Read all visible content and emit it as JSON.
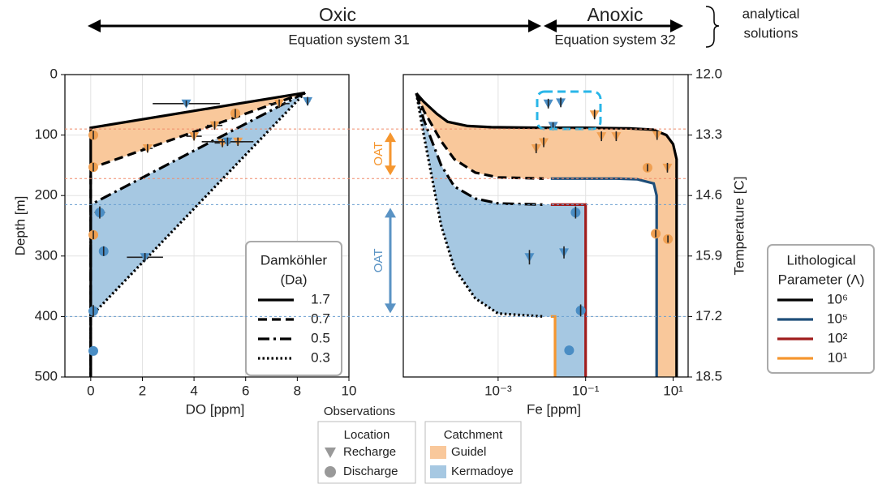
{
  "header": {
    "oxic": "Oxic",
    "anoxic": "Anoxic",
    "eq_oxic": "Equation system 31",
    "eq_anoxic": "Equation system 32",
    "analytical_1": "analytical",
    "analytical_2": "solutions"
  },
  "chart_data": [
    {
      "type": "line",
      "xlabel": "DO [ppm]",
      "ylabel": "Depth [m]",
      "xlim": [
        -1,
        10
      ],
      "xticks": [
        0,
        2,
        4,
        6,
        8,
        10
      ],
      "ylim": [
        0,
        500
      ],
      "y_inverted": true,
      "yticks": [
        0,
        100,
        200,
        300,
        400,
        500
      ],
      "grid": true,
      "legend_title": [
        "Damköhler",
        "(Da)"
      ],
      "series": [
        {
          "name": "1.7",
          "color": "#000000",
          "dash": "solid",
          "x": [
            8.3,
            0,
            0
          ],
          "y": [
            30,
            88,
            500
          ]
        },
        {
          "name": "0.7",
          "color": "#000000",
          "dash": "dashed",
          "x": [
            8.3,
            0,
            0
          ],
          "y": [
            30,
            155,
            500
          ]
        },
        {
          "name": "0.5",
          "color": "#000000",
          "dash": "dashdot",
          "x": [
            8.3,
            0,
            0
          ],
          "y": [
            30,
            215,
            500
          ]
        },
        {
          "name": "0.3",
          "color": "#000000",
          "dash": "dotted",
          "x": [
            8.3,
            0,
            0
          ],
          "y": [
            30,
            400,
            500
          ]
        }
      ],
      "fills": [
        {
          "color": "#f9c89b",
          "path": [
            {
              "series": 0,
              "reverse": false
            },
            {
              "series": 1,
              "reverse": true
            }
          ]
        },
        {
          "color": "#a6c8e2",
          "path": [
            {
              "series": 2,
              "reverse": false
            },
            {
              "series": 3,
              "reverse": true
            }
          ]
        }
      ],
      "observations": [
        {
          "marker": "triangle",
          "color": "#f0a052",
          "x": [
            2.2,
            4.0,
            4.8,
            7.3,
            5.1,
            5.7
          ],
          "y": [
            122,
            102,
            84,
            48,
            113,
            111
          ],
          "xerr": [
            0.2,
            0.3,
            0.3,
            0.4,
            0.3,
            0.2
          ],
          "yerr": [
            7,
            7,
            7,
            7,
            7,
            7
          ]
        },
        {
          "marker": "circle",
          "color": "#f0a052",
          "x": [
            0.1,
            0.1,
            0.1,
            5.6
          ],
          "y": [
            100,
            153,
            265,
            64
          ],
          "xerr": [
            0.1,
            0.1,
            0.1,
            0.1
          ],
          "yerr": [
            7,
            7,
            7,
            7
          ]
        },
        {
          "marker": "triangle",
          "color": "#4a8dc4",
          "x": [
            3.7,
            8.4,
            2.1,
            5.3
          ],
          "y": [
            48,
            44,
            302,
            111
          ],
          "xerr": [
            1.3,
            0.1,
            0.7,
            1.0
          ],
          "yerr": [
            5,
            7,
            7,
            7
          ]
        },
        {
          "marker": "circle",
          "color": "#4a8dc4",
          "x": [
            0.35,
            0.5,
            0.1,
            0.1
          ],
          "y": [
            228,
            292,
            391,
            457
          ],
          "xerr": [
            0.2,
            0.15,
            0.1,
            0
          ],
          "yerr": [
            10,
            8,
            10,
            0
          ]
        }
      ]
    },
    {
      "type": "line",
      "xlabel": "Fe [ppm]",
      "y2label": "Temperature [C]",
      "xlim": [
        6.8e-06,
        22
      ],
      "xlog": true,
      "xticks": [
        {
          "value": 0.001,
          "label": "10⁻³"
        },
        {
          "value": 0.1,
          "label": "10⁻¹"
        },
        {
          "value": 10,
          "label": "10¹"
        }
      ],
      "ylim": [
        0,
        500
      ],
      "y_inverted": true,
      "y2lim": [
        12,
        18.5
      ],
      "y2_inverted": true,
      "y2ticks": [
        {
          "value": 12,
          "label": "12.0"
        },
        13.3,
        14.6,
        15.9,
        17.2,
        18.5
      ],
      "grid": true,
      "legend_title": [
        "Lithological",
        "Parameter (Λ)"
      ],
      "series": [
        {
          "name": "10⁶",
          "color": "#000000",
          "dash": "solid",
          "x": [
            1.35e-05,
            2e-05,
            4e-05,
            7e-05,
            0.0002,
            0.0007,
            0.01,
            0.1,
            1,
            3.5,
            7,
            10,
            12,
            12
          ],
          "y": [
            31,
            45,
            65,
            78,
            85,
            87,
            88,
            88,
            89,
            91,
            100,
            115,
            140,
            500
          ]
        },
        {
          "color": "#000000",
          "dash": "dashed",
          "x": [
            1.35e-05,
            2e-05,
            5e-05,
            0.0001,
            0.0003,
            0.001,
            0.011
          ],
          "y": [
            31,
            60,
            110,
            140,
            162,
            170,
            172
          ]
        },
        {
          "color": "#000000",
          "dash": "dashdot",
          "x": [
            1.35e-05,
            2e-05,
            5e-05,
            0.0001,
            0.0003,
            0.001,
            0.011
          ],
          "y": [
            31,
            75,
            150,
            185,
            205,
            213,
            215
          ]
        },
        {
          "color": "#000000",
          "dash": "dotted",
          "x": [
            1.35e-05,
            2e-05,
            5e-05,
            0.0001,
            0.0003,
            0.001,
            0.011
          ],
          "y": [
            31,
            100,
            250,
            320,
            370,
            395,
            400
          ]
        },
        {
          "name": "10⁵",
          "color": "#1f4e79",
          "dash": "solid",
          "x": [
            0.016,
            0.1,
            0.5,
            1.5,
            3.6,
            4.2,
            4.2
          ],
          "y": [
            172,
            172,
            172,
            173,
            180,
            200,
            500
          ]
        },
        {
          "name": "10²",
          "color": "#a01c1c",
          "dash": "solid",
          "x": [
            0.016,
            0.1,
            0.1
          ],
          "y": [
            215,
            215,
            500
          ]
        },
        {
          "name": "10¹",
          "color": "#f5962f",
          "dash": "solid",
          "x": [
            0.016,
            0.02,
            0.02
          ],
          "y": [
            400,
            400,
            500
          ]
        }
      ],
      "fills": [
        {
          "color": "#f9c89b",
          "path": [
            {
              "series": 0,
              "reverse": false
            },
            {
              "series": 4,
              "reverse": true
            },
            {
              "series": 1,
              "reverse": true
            }
          ]
        },
        {
          "color": "#a6c8e2",
          "path": [
            {
              "series": 2,
              "reverse": false
            },
            {
              "series": 5,
              "reverse": false
            },
            {
              "series": 6,
              "reverse": true
            },
            {
              "series": 3,
              "reverse": true
            }
          ]
        }
      ],
      "observations": [
        {
          "marker": "triangle",
          "color": "#f0a052",
          "x": [
            0.0074,
            0.011,
            0.16,
            0.23,
            0.5,
            4.3,
            7.4
          ],
          "y": [
            122,
            112,
            66,
            102,
            102,
            100,
            154
          ],
          "yerr": [
            8,
            8,
            8,
            8,
            8,
            8,
            8
          ]
        },
        {
          "marker": "circle",
          "color": "#f0a052",
          "x": [
            2.6,
            4,
            7.6
          ],
          "y": [
            154,
            263,
            272
          ],
          "yerr": [
            6,
            6,
            6
          ]
        },
        {
          "marker": "triangle",
          "color": "#4a8dc4",
          "x": [
            0.014,
            0.027,
            0.018,
            0.0052,
            0.032
          ],
          "y": [
            48,
            46,
            85,
            302,
            294
          ],
          "yerr": [
            8,
            8,
            6,
            12,
            10
          ]
        },
        {
          "marker": "circle",
          "color": "#4a8dc4",
          "x": [
            0.059,
            0.077,
            0.042
          ],
          "y": [
            228,
            390,
            456
          ],
          "yerr": [
            10,
            10,
            0
          ]
        }
      ]
    }
  ],
  "reference_depths": [
    {
      "depth": 90,
      "color": "#f08a6a"
    },
    {
      "depth": 172,
      "color": "#f08a6a"
    },
    {
      "depth": 215,
      "color": "#6a9fd0"
    },
    {
      "depth": 400,
      "color": "#6a9fd0"
    }
  ],
  "oat": [
    {
      "text": "OAT",
      "color": "#f5962f",
      "from": 90,
      "to": 172
    },
    {
      "text": "OAT",
      "color": "#5a93c4",
      "from": 215,
      "to": 400
    }
  ],
  "observation_legend": {
    "title": "Observations",
    "location": {
      "title": "Location",
      "items": [
        {
          "name": "Recharge",
          "marker": "triangle"
        },
        {
          "name": "Discharge",
          "marker": "circle"
        }
      ]
    },
    "catchment": {
      "title": "Catchment",
      "items": [
        {
          "name": "Guidel",
          "color": "#f9c89b"
        },
        {
          "name": "Kermadoye",
          "color": "#a6c8e2"
        }
      ]
    }
  }
}
